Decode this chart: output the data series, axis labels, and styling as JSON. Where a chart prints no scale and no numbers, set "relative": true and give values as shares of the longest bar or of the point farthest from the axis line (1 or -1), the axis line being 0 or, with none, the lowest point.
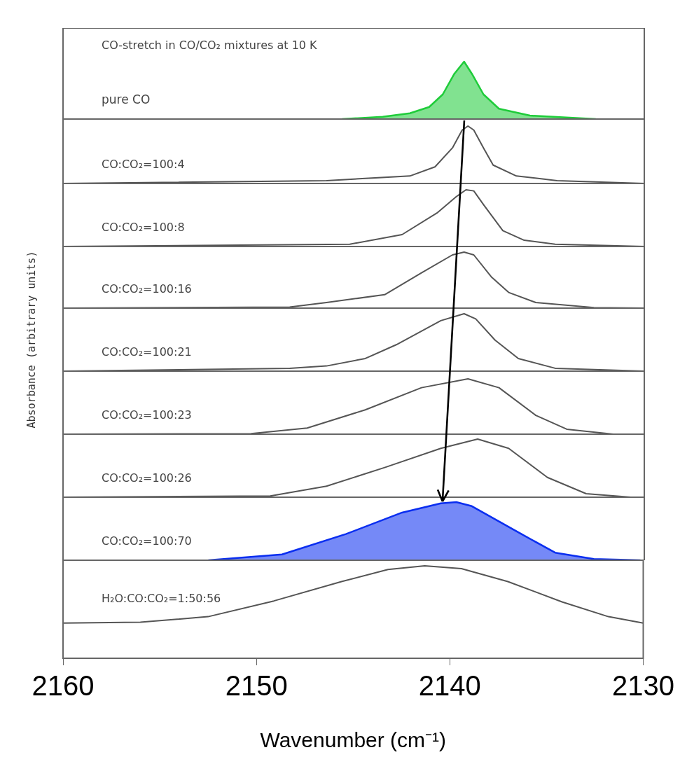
{
  "chart_data": [
    {
      "type": "area",
      "title": "CO-stretch in CO/CO₂ mixtures at 10 K",
      "relative": true,
      "xlim": [
        2160,
        2130
      ],
      "tick_labels": false,
      "x": [
        2145.6,
        2143.5,
        2142.1,
        2141.1,
        2140.4,
        2139.8,
        2139.3,
        2138.9,
        2138.3,
        2137.5,
        2135.9,
        2132.5
      ],
      "series": [
        {
          "name": "pure CO",
          "color": "#1fcc3a",
          "values": [
            0,
            0.04,
            0.1,
            0.21,
            0.43,
            0.79,
            1,
            0.79,
            0.43,
            0.18,
            0.06,
            0
          ]
        }
      ]
    },
    {
      "type": "line",
      "relative": true,
      "xlim": [
        2160,
        2130
      ],
      "tick_labels": false,
      "x": [
        2160,
        2146.4,
        2142.1,
        2140.8,
        2139.9,
        2139.4,
        2139.1,
        2138.8,
        2138.3,
        2137.8,
        2136.6,
        2134.5,
        2130
      ],
      "series": [
        {
          "name": "CO:CO₂=100:4",
          "color": "#555555",
          "values": [
            0,
            0.05,
            0.13,
            0.29,
            0.62,
            0.93,
            1,
            0.93,
            0.62,
            0.32,
            0.13,
            0.05,
            0
          ]
        }
      ]
    },
    {
      "type": "line",
      "relative": true,
      "xlim": [
        2160,
        2130
      ],
      "tick_labels": false,
      "x": [
        2160,
        2145.2,
        2142.5,
        2140.7,
        2139.7,
        2139.2,
        2138.8,
        2138.3,
        2137.3,
        2136.2,
        2134.6,
        2130
      ],
      "series": [
        {
          "name": "CO:CO₂=100:8",
          "color": "#555555",
          "values": [
            0,
            0.04,
            0.21,
            0.59,
            0.88,
            1,
            0.98,
            0.74,
            0.28,
            0.11,
            0.04,
            0
          ]
        }
      ]
    },
    {
      "type": "line",
      "relative": true,
      "xlim": [
        2160,
        2130
      ],
      "tick_labels": false,
      "x": [
        2160,
        2148.3,
        2146.4,
        2143.4,
        2141.5,
        2139.9,
        2139.3,
        2138.8,
        2137.9,
        2137.0,
        2135.6,
        2132.6,
        2130
      ],
      "series": [
        {
          "name": "CO:CO₂=100:16",
          "color": "#555555",
          "values": [
            0,
            0.02,
            0.1,
            0.24,
            0.63,
            0.95,
            1,
            0.95,
            0.56,
            0.28,
            0.1,
            0.01,
            0
          ]
        }
      ]
    },
    {
      "type": "line",
      "ylabel": "Absorbance (arbitrary units)",
      "relative": true,
      "xlim": [
        2160,
        2130
      ],
      "tick_labels": false,
      "x": [
        2160,
        2148.3,
        2146.4,
        2144.4,
        2142.8,
        2140.5,
        2139.3,
        2138.7,
        2137.7,
        2136.5,
        2134.6,
        2130
      ],
      "series": [
        {
          "name": "CO:CO₂=100:21",
          "color": "#555555",
          "values": [
            0,
            0.05,
            0.09,
            0.22,
            0.46,
            0.88,
            1,
            0.91,
            0.54,
            0.22,
            0.05,
            0
          ]
        }
      ]
    },
    {
      "type": "line",
      "relative": true,
      "xlim": [
        2160,
        2130
      ],
      "tick_labels": false,
      "x": [
        2160,
        2150.3,
        2147.4,
        2144.4,
        2141.5,
        2139.1,
        2137.5,
        2135.6,
        2134.0,
        2131.6,
        2130
      ],
      "series": [
        {
          "name": "CO:CO₂=100:23",
          "color": "#555555",
          "values": [
            0,
            0.01,
            0.11,
            0.44,
            0.84,
            1,
            0.84,
            0.34,
            0.09,
            0,
            0
          ]
        }
      ]
    },
    {
      "type": "line",
      "relative": true,
      "xlim": [
        2160,
        2130
      ],
      "tick_labels": false,
      "x": [
        2160,
        2149.3,
        2146.4,
        2143.4,
        2140.5,
        2138.6,
        2137.0,
        2135.0,
        2133.0,
        2130.7,
        2130
      ],
      "series": [
        {
          "name": "CO:CO₂=100:26",
          "color": "#555555",
          "values": [
            0,
            0.02,
            0.19,
            0.51,
            0.84,
            1,
            0.84,
            0.34,
            0.06,
            0,
            0
          ]
        }
      ]
    },
    {
      "type": "area",
      "relative": true,
      "xlim": [
        2160,
        2130
      ],
      "tick_labels": false,
      "x": [
        2152.5,
        2148.7,
        2145.4,
        2142.5,
        2140.5,
        2139.7,
        2138.9,
        2136.5,
        2134.6,
        2132.6,
        2130.2
      ],
      "series": [
        {
          "name": "CO:CO₂=100:70",
          "color": "#0a2ef0",
          "values": [
            0,
            0.1,
            0.45,
            0.82,
            0.98,
            1,
            0.93,
            0.48,
            0.13,
            0.02,
            0
          ]
        }
      ]
    },
    {
      "type": "line",
      "relative": true,
      "xlim": [
        2160,
        2130
      ],
      "xticks": [
        2160,
        2150,
        2140,
        2130
      ],
      "xlabel": "Wavenumber (cm⁻¹)",
      "x": [
        2160,
        2156.0,
        2152.5,
        2149.1,
        2145.6,
        2143.2,
        2141.3,
        2139.4,
        2137.0,
        2134.2,
        2131.8,
        2130
      ],
      "series": [
        {
          "name": "H₂O:CO:CO₂=1:50:56",
          "color": "#555555",
          "values": [
            0.38,
            0.39,
            0.45,
            0.62,
            0.83,
            0.96,
            1,
            0.97,
            0.83,
            0.61,
            0.45,
            0.38
          ]
        }
      ]
    }
  ]
}
